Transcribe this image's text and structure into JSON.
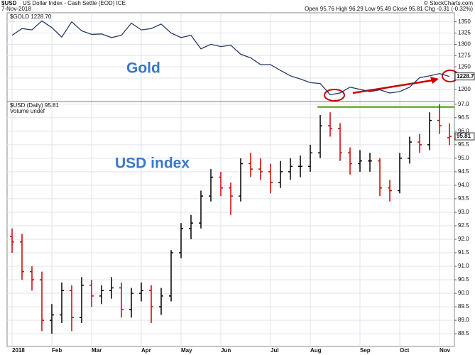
{
  "header": {
    "symbol": "$USD",
    "name": "US Dollar Index - Cash Settle (EOD) ICE",
    "date": "7-Nov-2018",
    "copyright": "© StockCharts.com",
    "quote": "Open 95.76 High 96.29 Low 95.49 Close 95.81 Chg -0.31 (-0.32%)"
  },
  "chart_data": [
    {
      "type": "line",
      "legend": "$GOLD 1228.70",
      "annotation": "Gold",
      "price_tag": "1228.7",
      "color": "#2b3a67",
      "values": [
        1320,
        1335,
        1332,
        1352,
        1337,
        1316,
        1350,
        1330,
        1322,
        1323,
        1315,
        1320,
        1347,
        1332,
        1335,
        1345,
        1325,
        1315,
        1320,
        1290,
        1300,
        1295,
        1298,
        1278,
        1270,
        1255,
        1255,
        1242,
        1230,
        1223,
        1215,
        1213,
        1188,
        1192,
        1205,
        1200,
        1195,
        1199,
        1192,
        1195,
        1205,
        1226,
        1230,
        1235,
        1228.7
      ],
      "ylim": [
        1173,
        1370
      ],
      "yticks": [
        1200,
        1225,
        1250,
        1275,
        1300,
        1325,
        1350
      ],
      "grid": true
    },
    {
      "type": "ohlc",
      "legend": "$USD (Daily) 95.81",
      "legend_sub": "Volume undef",
      "annotation": "USD index",
      "price_tag": "95.81",
      "up_color": "#000000",
      "down_color": "#cc0000",
      "level": 96.9,
      "level_color": "#6aaa3a",
      "categories": [
        "2018",
        null,
        null,
        null,
        "Feb",
        null,
        null,
        null,
        "Mar",
        null,
        null,
        null,
        null,
        "Apr",
        null,
        null,
        null,
        "May",
        null,
        null,
        null,
        "Jun",
        null,
        null,
        null,
        null,
        "Jul",
        null,
        null,
        null,
        "Aug",
        null,
        null,
        null,
        null,
        "Sep",
        null,
        null,
        null,
        "Oct",
        null,
        null,
        null,
        "Nov",
        null
      ],
      "open": [
        92.1,
        91.9,
        90.8,
        90.5,
        89.0,
        89.2,
        90.1,
        89.1,
        90.3,
        89.9,
        90.1,
        90.2,
        89.4,
        90.0,
        90.1,
        89.5,
        89.9,
        91.5,
        92.4,
        92.6,
        93.6,
        94.3,
        93.9,
        93.6,
        94.8,
        94.6,
        94.5,
        94.1,
        94.5,
        94.7,
        94.7,
        95.2,
        96.2,
        96.1,
        95.2,
        94.8,
        94.9,
        94.9,
        93.9,
        93.8,
        95.0,
        95.6,
        95.5,
        96.4,
        95.76
      ],
      "high": [
        92.4,
        92.2,
        91.0,
        90.8,
        89.6,
        90.4,
        90.3,
        90.6,
        90.5,
        90.3,
        90.6,
        90.4,
        90.2,
        90.4,
        90.3,
        90.2,
        91.6,
        92.6,
        92.9,
        93.8,
        94.6,
        94.5,
        94.1,
        95.0,
        95.2,
        95.0,
        94.8,
        94.9,
        95.0,
        95.1,
        95.5,
        96.6,
        96.7,
        96.3,
        95.4,
        95.3,
        95.2,
        95.0,
        94.2,
        95.2,
        95.8,
        95.9,
        96.7,
        97.0,
        96.29
      ],
      "low": [
        91.5,
        90.5,
        90.1,
        88.6,
        88.5,
        88.9,
        88.6,
        88.9,
        89.5,
        89.6,
        89.8,
        89.1,
        89.1,
        89.7,
        88.9,
        89.2,
        89.7,
        91.3,
        92.0,
        92.4,
        93.4,
        93.6,
        92.9,
        93.4,
        94.3,
        94.2,
        93.7,
        93.9,
        94.2,
        94.3,
        94.5,
        95.0,
        95.8,
        94.9,
        94.4,
        94.5,
        94.5,
        93.6,
        93.4,
        93.7,
        94.8,
        95.2,
        95.3,
        95.9,
        95.49
      ],
      "close": [
        91.9,
        90.8,
        90.5,
        89.0,
        89.2,
        90.1,
        89.1,
        90.3,
        89.9,
        90.1,
        90.2,
        89.4,
        90.0,
        90.1,
        89.5,
        89.9,
        91.5,
        92.4,
        92.6,
        93.6,
        94.3,
        93.9,
        93.6,
        94.8,
        94.6,
        94.5,
        94.1,
        94.5,
        94.7,
        94.7,
        95.2,
        96.2,
        96.1,
        95.2,
        94.8,
        94.9,
        94.9,
        93.9,
        93.8,
        95.0,
        95.6,
        95.5,
        96.4,
        96.2,
        95.81
      ],
      "ylim": [
        88.03,
        97.1
      ],
      "yticks": [
        {
          "value": 88,
          "label": "88.0"
        },
        88.5,
        {
          "value": 89,
          "label": "89.0"
        },
        89.5,
        {
          "value": 90,
          "label": "90.0"
        },
        90.5,
        {
          "value": 91,
          "label": "91.0"
        },
        91.5,
        {
          "value": 92,
          "label": "92.0"
        },
        92.5,
        {
          "value": 93,
          "label": "93.0"
        },
        93.5,
        {
          "value": 94,
          "label": "94.0"
        },
        94.5,
        {
          "value": 95,
          "label": "95.0"
        },
        95.5,
        {
          "value": 96,
          "label": "96.0"
        },
        96.5,
        {
          "value": 97,
          "label": "97.0"
        }
      ],
      "grid": true
    }
  ]
}
